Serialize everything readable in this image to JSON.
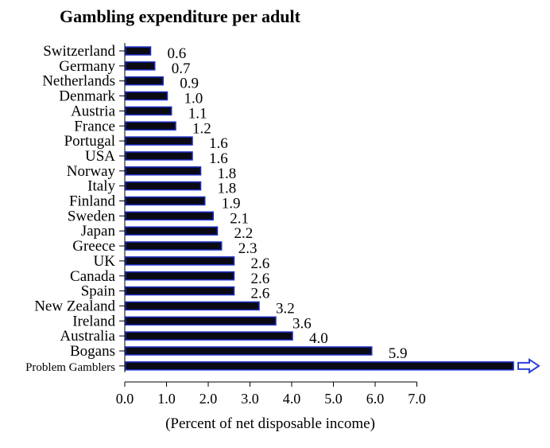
{
  "chart_data": {
    "type": "bar",
    "orientation": "horizontal",
    "title": "Gambling expenditure per adult",
    "xlabel": "(Percent of net disposable income)",
    "ylabel": "",
    "xlim": [
      0,
      7
    ],
    "x_ticks": [
      "0.0",
      "1.0",
      "2.0",
      "3.0",
      "4.0",
      "5.0",
      "6.0",
      "7.0"
    ],
    "grid": false,
    "legend": "none",
    "bar_fill": "#0a0a14",
    "bar_edge": "#1f2fc8",
    "arrow_color": "#2b3fd6",
    "categories": [
      "Switzerland",
      "Germany",
      "Netherlands",
      "Denmark",
      "Austria",
      "France",
      "Portugal",
      "USA",
      "Norway",
      "Italy",
      "Finland",
      "Sweden",
      "Japan",
      "Greece",
      "UK",
      "Canada",
      "Spain",
      "New Zealand",
      "Ireland",
      "Australia",
      "Bogans",
      "Problem Gamblers"
    ],
    "values": [
      0.6,
      0.7,
      0.9,
      1.0,
      1.1,
      1.2,
      1.6,
      1.6,
      1.8,
      1.8,
      1.9,
      2.1,
      2.2,
      2.3,
      2.6,
      2.6,
      2.6,
      3.2,
      3.6,
      4.0,
      5.9,
      null
    ],
    "value_labels": [
      "0.6",
      "0.7",
      "0.9",
      "1.0",
      "1.1",
      "1.2",
      "1.6",
      "1.6",
      "1.8",
      "1.8",
      "1.9",
      "2.1",
      "2.2",
      "2.3",
      "2.6",
      "2.6",
      "2.6",
      "3.2",
      "3.6",
      "4.0",
      "5.9",
      ""
    ],
    "off_scale_category": "Problem Gamblers"
  }
}
